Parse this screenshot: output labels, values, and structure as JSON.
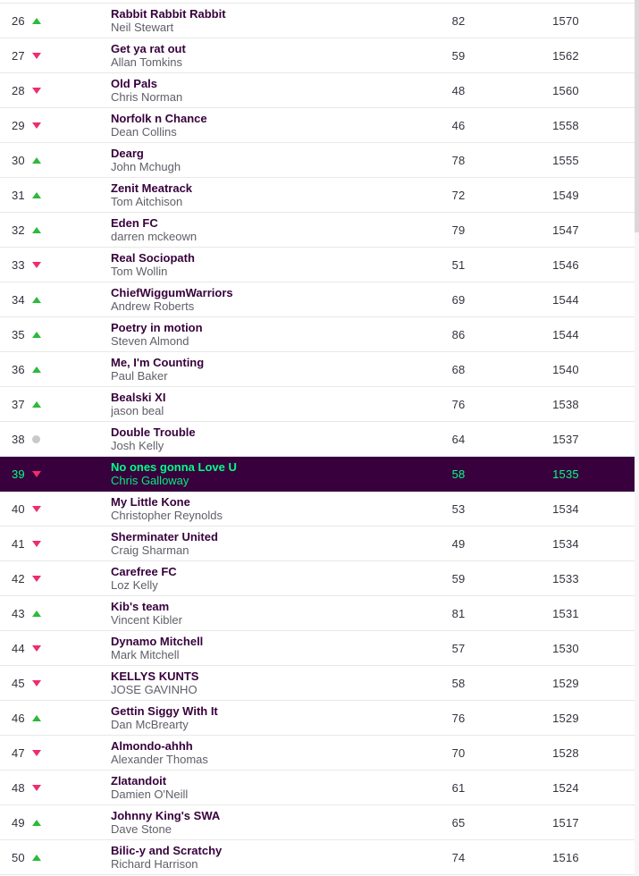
{
  "colors": {
    "highlight_bg": "#38003c",
    "highlight_text": "#00ff87",
    "up_arrow": "#2db93c",
    "down_arrow": "#ee2d6d",
    "same_dot": "#c9c9c9",
    "row_border": "#e8e8e8",
    "team_text": "#37003c",
    "manager_text": "#5f5f68",
    "number_text": "#33333d"
  },
  "table": {
    "columns": [
      "rank",
      "movement",
      "team",
      "manager",
      "gw_points",
      "total_points"
    ],
    "rows": [
      {
        "rank": "26",
        "movement": "up",
        "team": "Rabbit Rabbit Rabbit",
        "manager": "Neil Stewart",
        "gw": "82",
        "total": "1570",
        "highlighted": false
      },
      {
        "rank": "27",
        "movement": "down",
        "team": "Get ya rat out",
        "manager": "Allan Tomkins",
        "gw": "59",
        "total": "1562",
        "highlighted": false
      },
      {
        "rank": "28",
        "movement": "down",
        "team": "Old Pals",
        "manager": "Chris Norman",
        "gw": "48",
        "total": "1560",
        "highlighted": false
      },
      {
        "rank": "29",
        "movement": "down",
        "team": "Norfolk n Chance",
        "manager": "Dean Collins",
        "gw": "46",
        "total": "1558",
        "highlighted": false
      },
      {
        "rank": "30",
        "movement": "up",
        "team": "Dearg",
        "manager": "John Mchugh",
        "gw": "78",
        "total": "1555",
        "highlighted": false
      },
      {
        "rank": "31",
        "movement": "up",
        "team": "Zenit Meatrack",
        "manager": "Tom Aitchison",
        "gw": "72",
        "total": "1549",
        "highlighted": false
      },
      {
        "rank": "32",
        "movement": "up",
        "team": "Eden FC",
        "manager": "darren mckeown",
        "gw": "79",
        "total": "1547",
        "highlighted": false
      },
      {
        "rank": "33",
        "movement": "down",
        "team": "Real Sociopath",
        "manager": "Tom Wollin",
        "gw": "51",
        "total": "1546",
        "highlighted": false
      },
      {
        "rank": "34",
        "movement": "up",
        "team": "ChiefWiggumWarriors",
        "manager": "Andrew Roberts",
        "gw": "69",
        "total": "1544",
        "highlighted": false
      },
      {
        "rank": "35",
        "movement": "up",
        "team": "Poetry in motion",
        "manager": "Steven Almond",
        "gw": "86",
        "total": "1544",
        "highlighted": false
      },
      {
        "rank": "36",
        "movement": "up",
        "team": "Me, I'm Counting",
        "manager": "Paul Baker",
        "gw": "68",
        "total": "1540",
        "highlighted": false
      },
      {
        "rank": "37",
        "movement": "up",
        "team": "Bealski XI",
        "manager": "jason beal",
        "gw": "76",
        "total": "1538",
        "highlighted": false
      },
      {
        "rank": "38",
        "movement": "same",
        "team": "Double Trouble",
        "manager": "Josh Kelly",
        "gw": "64",
        "total": "1537",
        "highlighted": false
      },
      {
        "rank": "39",
        "movement": "down",
        "team": "No ones gonna Love U",
        "manager": "Chris Galloway",
        "gw": "58",
        "total": "1535",
        "highlighted": true
      },
      {
        "rank": "40",
        "movement": "down",
        "team": "My Little Kone",
        "manager": "Christopher Reynolds",
        "gw": "53",
        "total": "1534",
        "highlighted": false
      },
      {
        "rank": "41",
        "movement": "down",
        "team": "Sherminater United",
        "manager": "Craig Sharman",
        "gw": "49",
        "total": "1534",
        "highlighted": false
      },
      {
        "rank": "42",
        "movement": "down",
        "team": "Carefree FC",
        "manager": "Loz Kelly",
        "gw": "59",
        "total": "1533",
        "highlighted": false
      },
      {
        "rank": "43",
        "movement": "up",
        "team": "Kib's team",
        "manager": "Vincent Kibler",
        "gw": "81",
        "total": "1531",
        "highlighted": false
      },
      {
        "rank": "44",
        "movement": "down",
        "team": "Dynamo Mitchell",
        "manager": "Mark Mitchell",
        "gw": "57",
        "total": "1530",
        "highlighted": false
      },
      {
        "rank": "45",
        "movement": "down",
        "team": "KELLYS KUNTS",
        "manager": "JOSE GAVINHO",
        "gw": "58",
        "total": "1529",
        "highlighted": false
      },
      {
        "rank": "46",
        "movement": "up",
        "team": "Gettin Siggy With It",
        "manager": "Dan McBrearty",
        "gw": "76",
        "total": "1529",
        "highlighted": false
      },
      {
        "rank": "47",
        "movement": "down",
        "team": "Almondo-ahhh",
        "manager": "Alexander Thomas",
        "gw": "70",
        "total": "1528",
        "highlighted": false
      },
      {
        "rank": "48",
        "movement": "down",
        "team": "Zlatandoit",
        "manager": "Damien O'Neill",
        "gw": "61",
        "total": "1524",
        "highlighted": false
      },
      {
        "rank": "49",
        "movement": "up",
        "team": "Johnny King's SWA",
        "manager": "Dave Stone",
        "gw": "65",
        "total": "1517",
        "highlighted": false
      },
      {
        "rank": "50",
        "movement": "up",
        "team": "Bilic-y and Scratchy",
        "manager": "Richard Harrison",
        "gw": "74",
        "total": "1516",
        "highlighted": false
      }
    ]
  }
}
